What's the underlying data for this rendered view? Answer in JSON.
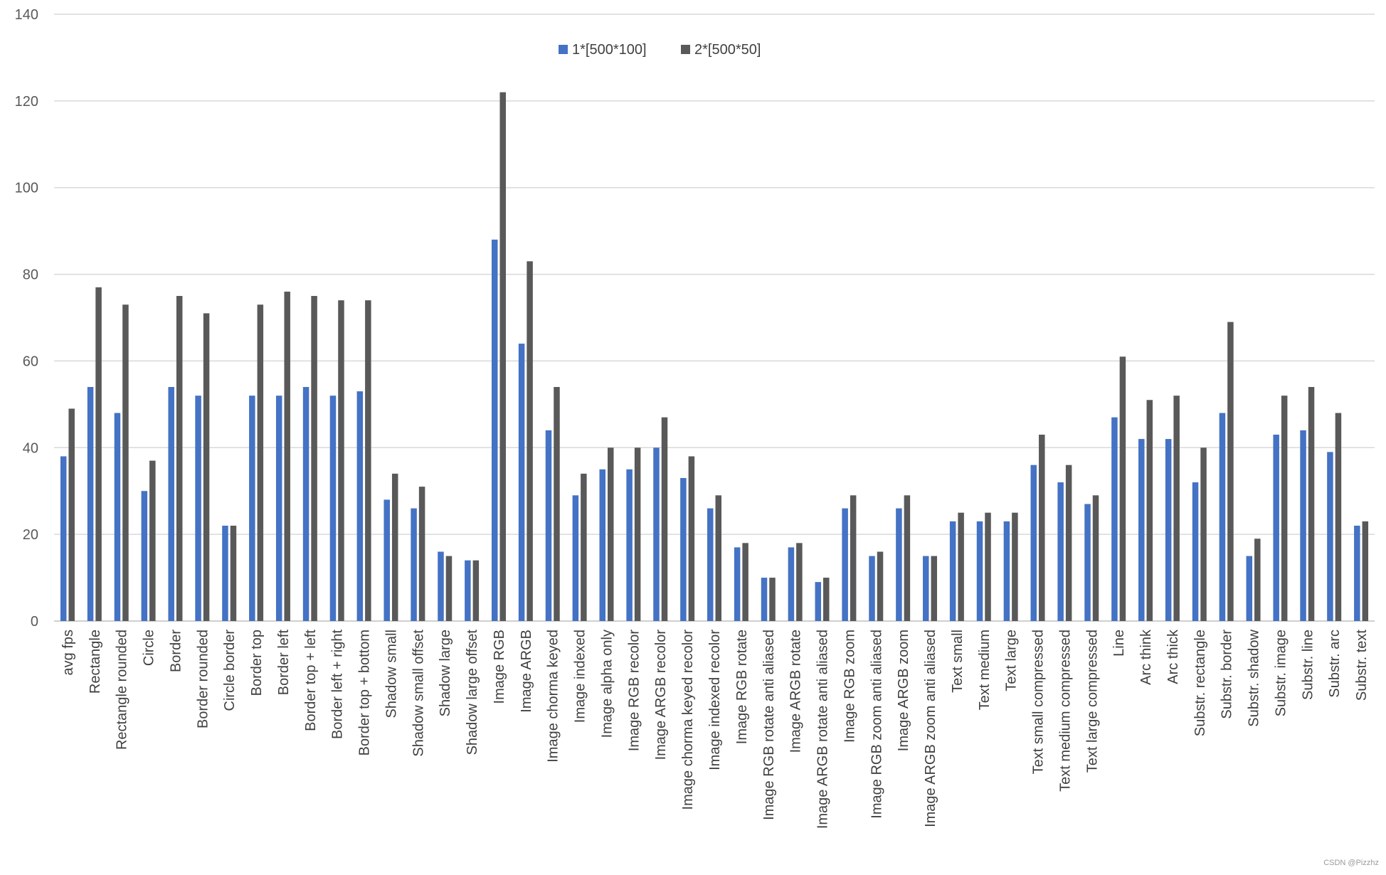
{
  "chart_data": {
    "type": "bar",
    "categories": [
      "avg fps",
      "Rectangle",
      "Rectangle rounded",
      "Circle",
      "Border",
      "Border rounded",
      "Circle border",
      "Border top",
      "Border left",
      "Border top + left",
      "Border left + right",
      "Border top + bottom",
      "Shadow small",
      "Shadow small offset",
      "Shadow large",
      "Shadow large offset",
      "Image RGB",
      "Image ARGB",
      "Image chorma keyed",
      "Image indexed",
      "Image alpha only",
      "Image RGB recolor",
      "Image ARGB recolor",
      "Image chorma keyed recolor",
      "Image indexed recolor",
      "Image RGB rotate",
      "Image RGB rotate anti aliased",
      "Image ARGB rotate",
      "Image ARGB rotate anti aliased",
      "Image RGB zoom",
      "Image RGB zoom anti aliased",
      "Image ARGB zoom",
      "Image ARGB zoom anti aliased",
      "Text small",
      "Text medium",
      "Text large",
      "Text small compressed",
      "Text medium compressed",
      "Text large compressed",
      "Line",
      "Arc think",
      "Arc thick",
      "Substr. rectangle",
      "Substr. border",
      "Substr. shadow",
      "Substr. image",
      "Substr. line",
      "Substr. arc",
      "Substr. text"
    ],
    "series": [
      {
        "name": "1*[500*100]",
        "color": "#4472c4",
        "values": [
          38,
          54,
          48,
          30,
          54,
          52,
          22,
          52,
          52,
          54,
          52,
          53,
          28,
          26,
          16,
          14,
          88,
          64,
          44,
          29,
          35,
          35,
          40,
          33,
          26,
          17,
          10,
          17,
          9,
          26,
          15,
          26,
          15,
          23,
          23,
          23,
          36,
          32,
          27,
          47,
          42,
          42,
          32,
          48,
          15,
          43,
          44,
          39,
          22
        ]
      },
      {
        "name": "2*[500*50]",
        "color": "#595959",
        "values": [
          49,
          77,
          73,
          37,
          75,
          71,
          22,
          73,
          76,
          75,
          74,
          74,
          34,
          31,
          15,
          14,
          122,
          83,
          54,
          34,
          40,
          40,
          47,
          38,
          29,
          18,
          10,
          18,
          10,
          29,
          16,
          29,
          15,
          25,
          25,
          25,
          43,
          36,
          29,
          61,
          51,
          52,
          40,
          69,
          19,
          52,
          54,
          48,
          23
        ]
      }
    ],
    "yticks": [
      "0",
      "20",
      "40",
      "60",
      "80",
      "100",
      "120",
      "140"
    ],
    "ylim": [
      0,
      140
    ],
    "grid": true,
    "legend_position": "top-center"
  },
  "watermark": "CSDN @Pizzhz"
}
